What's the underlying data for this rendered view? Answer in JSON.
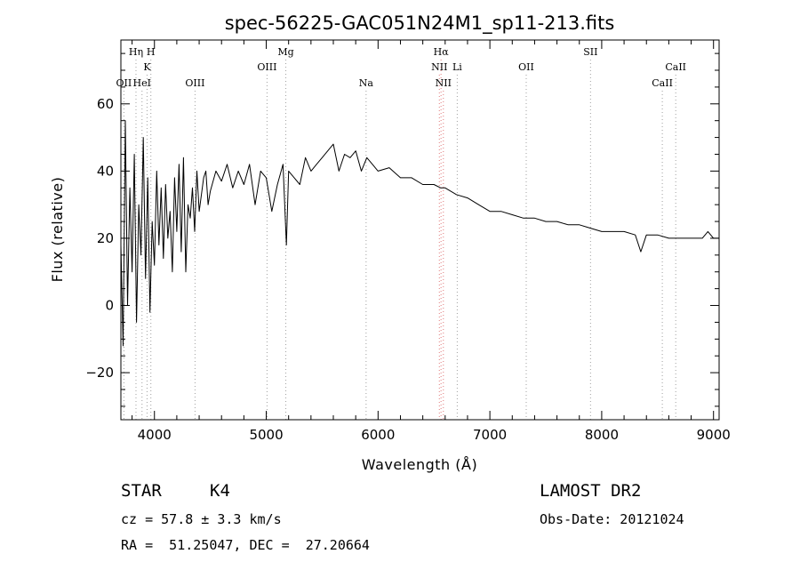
{
  "chart_data": {
    "type": "line",
    "title": "spec-56225-GAC051N24M1_sp11-213.fits",
    "xlabel": "Wavelength (Å)",
    "ylabel": "Flux (relative)",
    "xlim": [
      3700,
      9050
    ],
    "ylim": [
      -34,
      79
    ],
    "x_ticks": [
      4000,
      5000,
      6000,
      7000,
      8000,
      9000
    ],
    "x_tick_labels": [
      "4000",
      "5000",
      "6000",
      "7000",
      "8000",
      "9000"
    ],
    "y_ticks": [
      -20,
      0,
      20,
      40,
      60
    ],
    "y_tick_labels": [
      "−20",
      "0",
      "20",
      "40",
      "60"
    ],
    "grid": false,
    "series": [
      {
        "x": [
          3700,
          3720,
          3740,
          3760,
          3780,
          3800,
          3820,
          3840,
          3860,
          3880,
          3900,
          3920,
          3940,
          3960,
          3980,
          4000,
          4020,
          4040,
          4060,
          4080,
          4100,
          4120,
          4140,
          4160,
          4180,
          4200,
          4220,
          4240,
          4260,
          4280,
          4300,
          4320,
          4340,
          4360,
          4380,
          4400,
          4420,
          4440,
          4460,
          4480,
          4500,
          4550,
          4600,
          4650,
          4700,
          4750,
          4800,
          4850,
          4900,
          4950,
          5000,
          5050,
          5100,
          5150,
          5180,
          5200,
          5250,
          5300,
          5350,
          5400,
          5450,
          5500,
          5550,
          5600,
          5650,
          5700,
          5750,
          5800,
          5850,
          5900,
          5950,
          6000,
          6100,
          6200,
          6300,
          6400,
          6500,
          6560,
          6600,
          6700,
          6800,
          6900,
          7000,
          7100,
          7200,
          7300,
          7400,
          7500,
          7600,
          7700,
          7800,
          7900,
          8000,
          8100,
          8200,
          8300,
          8350,
          8400,
          8500,
          8600,
          8700,
          8800,
          8900,
          8950,
          9000,
          9050
        ],
        "y": [
          18,
          -12,
          55,
          0,
          35,
          10,
          45,
          -5,
          30,
          15,
          50,
          8,
          38,
          -2,
          25,
          12,
          40,
          18,
          35,
          14,
          36,
          20,
          28,
          10,
          38,
          22,
          42,
          16,
          44,
          10,
          30,
          26,
          35,
          22,
          40,
          28,
          33,
          38,
          40,
          30,
          34,
          40,
          37,
          42,
          35,
          40,
          36,
          42,
          30,
          40,
          38,
          28,
          36,
          42,
          18,
          40,
          38,
          36,
          44,
          40,
          42,
          44,
          46,
          48,
          40,
          45,
          44,
          46,
          40,
          44,
          42,
          40,
          41,
          38,
          38,
          36,
          36,
          35,
          35,
          33,
          32,
          30,
          28,
          28,
          27,
          26,
          26,
          25,
          25,
          24,
          24,
          23,
          22,
          22,
          22,
          21,
          16,
          21,
          21,
          20,
          20,
          20,
          20,
          22,
          20,
          20
        ],
        "style": "solid"
      }
    ],
    "spectral_lines": [
      {
        "name": "Hη",
        "wavelength": 3835,
        "row": 1
      },
      {
        "name": "H",
        "wavelength": 3968,
        "row": 1
      },
      {
        "name": "K",
        "wavelength": 3934,
        "row": 2
      },
      {
        "name": "OII",
        "wavelength": 3727,
        "row": 3
      },
      {
        "name": "HeI",
        "wavelength": 3889,
        "row": 3
      },
      {
        "name": "OIII",
        "wavelength": 4363,
        "row": 3
      },
      {
        "name": "Mg",
        "wavelength": 5175,
        "row": 1
      },
      {
        "name": "OIII",
        "wavelength": 5007,
        "row": 2
      },
      {
        "name": "Na",
        "wavelength": 5893,
        "row": 3
      },
      {
        "name": "Hα",
        "wavelength": 6563,
        "row": 1
      },
      {
        "name": "NII",
        "wavelength": 6548,
        "row": 2
      },
      {
        "name": "Li",
        "wavelength": 6708,
        "row": 2
      },
      {
        "name": "NII",
        "wavelength": 6584,
        "row": 3
      },
      {
        "name": "OII",
        "wavelength": 7325,
        "row": 2
      },
      {
        "name": "SII",
        "wavelength": 7900,
        "row": 1
      },
      {
        "name": "CaII",
        "wavelength": 8662,
        "row": 2
      },
      {
        "name": "CaII",
        "wavelength": 8542,
        "row": 3
      }
    ],
    "line_colors": {
      "default": "#a0a0a0",
      "highlight": "#e07a7a",
      "spectrum": "#000000"
    }
  },
  "info": {
    "class_label": "STAR",
    "subclass": "K4",
    "survey": "LAMOST DR2",
    "cz": "cz = 57.8 ± 3.3 km/s",
    "obs_date": "Obs-Date: 20121024",
    "coords": "RA =  51.25047, DEC =  27.20664"
  }
}
